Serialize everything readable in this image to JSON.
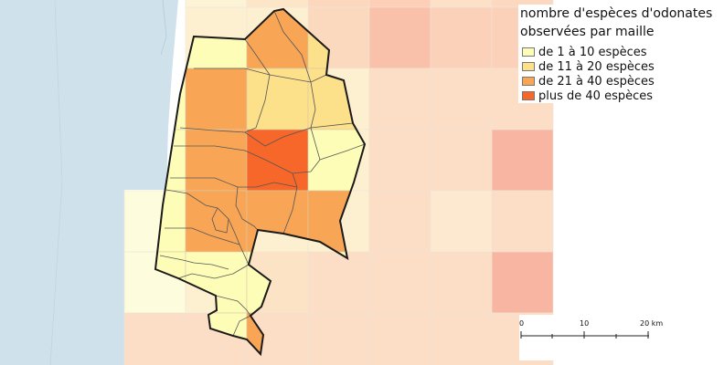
{
  "legend": {
    "title_line1": "nombre d'espèces d'odonates",
    "title_line2": "observées par maille",
    "classes": [
      {
        "label": "de 1 à 10 espèces",
        "color": "#fdfdb8"
      },
      {
        "label": "de 11 à 20 espèces",
        "color": "#fde08a"
      },
      {
        "label": "de 21 à 40 espèces",
        "color": "#f8a656"
      },
      {
        "label": "plus de 40 espèces",
        "color": "#f7672a"
      }
    ]
  },
  "scale": {
    "labels": [
      "0",
      "10",
      "20 km"
    ]
  },
  "colors": {
    "sea": "#cfe2ec",
    "land": "#ffffff",
    "outline": "#1a1a1a",
    "commune_lines": "#555555"
  }
}
